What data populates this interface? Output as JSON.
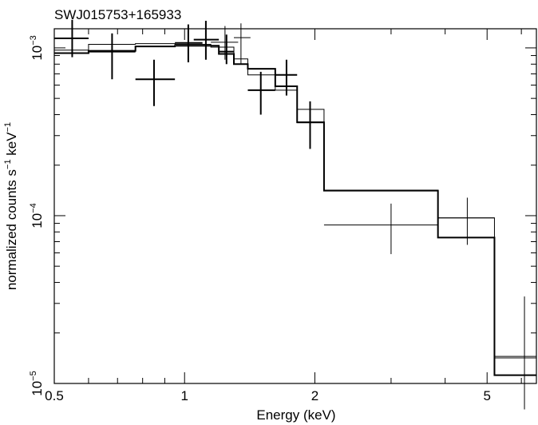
{
  "chart_data": {
    "type": "scatter",
    "title": "SWJ015753+165933",
    "xlabel": "Energy (keV)",
    "ylabel_parts": [
      "normalized counts s",
      "−1",
      " keV",
      "−1"
    ],
    "xscale": "log",
    "yscale": "log",
    "xlim": [
      0.5,
      6.5
    ],
    "ylim": [
      1e-05,
      0.0013
    ],
    "x_tick_labels": [
      {
        "value": 0.5,
        "label": "0.5"
      },
      {
        "value": 1,
        "label": "1"
      },
      {
        "value": 2,
        "label": "2"
      },
      {
        "value": 5,
        "label": "5"
      }
    ],
    "y_tick_labels": [
      {
        "value": 0.001,
        "base": "10",
        "exp": "−3"
      },
      {
        "value": 0.0001,
        "base": "10",
        "exp": "−4"
      },
      {
        "value": 1e-05,
        "base": "10",
        "exp": "−5"
      }
    ],
    "series": [
      {
        "kind": "data-points-thick",
        "points": [
          {
            "x": 0.55,
            "y": 0.00114,
            "xlo": 0.5,
            "xhi": 0.6,
            "ylo": 0.00088,
            "yhi": 0.00147
          },
          {
            "x": 0.68,
            "y": 0.00095,
            "xlo": 0.6,
            "xhi": 0.77,
            "ylo": 0.00065,
            "yhi": 0.00122
          },
          {
            "x": 0.85,
            "y": 0.00065,
            "xlo": 0.77,
            "xhi": 0.95,
            "ylo": 0.00045,
            "yhi": 0.00085
          },
          {
            "x": 1.02,
            "y": 0.00107,
            "xlo": 0.95,
            "xhi": 1.1,
            "ylo": 0.00082,
            "yhi": 0.00138
          },
          {
            "x": 1.12,
            "y": 0.00112,
            "xlo": 1.05,
            "xhi": 1.2,
            "ylo": 0.00085,
            "yhi": 0.00145
          },
          {
            "x": 1.25,
            "y": 0.00095,
            "xlo": 1.2,
            "xhi": 1.3,
            "ylo": 0.0008,
            "yhi": 0.0012
          },
          {
            "x": 1.5,
            "y": 0.00056,
            "xlo": 1.4,
            "xhi": 1.62,
            "ylo": 0.0004,
            "yhi": 0.00072
          },
          {
            "x": 1.72,
            "y": 0.00069,
            "xlo": 1.62,
            "xhi": 1.82,
            "ylo": 0.00052,
            "yhi": 0.00085
          },
          {
            "x": 1.95,
            "y": 0.00036,
            "xlo": 1.82,
            "xhi": 2.1,
            "ylo": 0.00025,
            "yhi": 0.00048
          }
        ]
      },
      {
        "kind": "data-points-thin",
        "points": [
          {
            "x": 1.24,
            "y": 0.00108,
            "xlo": 1.15,
            "xhi": 1.33,
            "ylo": 0.00085,
            "yhi": 0.00135
          },
          {
            "x": 1.35,
            "y": 0.00115,
            "xlo": 1.3,
            "xhi": 1.42,
            "ylo": 0.0008,
            "yhi": 0.0014
          },
          {
            "x": 3.0,
            "y": 8.8e-05,
            "xlo": 2.1,
            "xhi": 3.85,
            "ylo": 5.9e-05,
            "yhi": 0.000118
          },
          {
            "x": 4.5,
            "y": 9.7e-05,
            "xlo": 3.85,
            "xhi": 5.2,
            "ylo": 6.7e-05,
            "yhi": 0.000128
          },
          {
            "x": 6.1,
            "y": 1.45e-05,
            "xlo": 5.2,
            "xhi": 6.5,
            "ylo": 7e-06,
            "yhi": 3.3e-05
          }
        ]
      },
      {
        "kind": "model-thick",
        "steps": [
          {
            "x0": 0.5,
            "x1": 0.6,
            "y": 0.00093
          },
          {
            "x0": 0.6,
            "x1": 0.77,
            "y": 0.00096
          },
          {
            "x0": 0.77,
            "x1": 0.95,
            "y": 0.00102
          },
          {
            "x0": 0.95,
            "x1": 1.2,
            "y": 0.00103
          },
          {
            "x0": 1.2,
            "x1": 1.3,
            "y": 0.00092
          },
          {
            "x0": 1.3,
            "x1": 1.4,
            "y": 0.0008
          },
          {
            "x0": 1.4,
            "x1": 1.62,
            "y": 0.00075
          },
          {
            "x0": 1.62,
            "x1": 1.82,
            "y": 0.00059
          },
          {
            "x0": 1.82,
            "x1": 2.1,
            "y": 0.00036
          },
          {
            "x0": 2.1,
            "x1": 3.85,
            "y": 0.000141
          },
          {
            "x0": 3.85,
            "x1": 5.2,
            "y": 7.4e-05
          },
          {
            "x0": 5.2,
            "x1": 6.5,
            "y": 1.12e-05
          }
        ]
      },
      {
        "kind": "model-thin",
        "steps": [
          {
            "x0": 0.5,
            "x1": 0.6,
            "y": 0.00097
          },
          {
            "x0": 0.6,
            "x1": 0.77,
            "y": 0.00105
          },
          {
            "x0": 0.77,
            "x1": 0.95,
            "y": 0.00106
          },
          {
            "x0": 0.95,
            "x1": 1.15,
            "y": 0.00105
          },
          {
            "x0": 1.15,
            "x1": 1.3,
            "y": 0.00101
          },
          {
            "x0": 1.3,
            "x1": 1.4,
            "y": 0.00086
          },
          {
            "x0": 1.4,
            "x1": 1.62,
            "y": 0.00069
          },
          {
            "x0": 1.62,
            "x1": 1.82,
            "y": 0.00056
          },
          {
            "x0": 1.82,
            "x1": 2.1,
            "y": 0.00043
          },
          {
            "x0": 2.1,
            "x1": 3.85,
            "y": 0.000142
          },
          {
            "x0": 3.85,
            "x1": 5.2,
            "y": 9.7e-05
          },
          {
            "x0": 5.2,
            "x1": 6.5,
            "y": 1.42e-05
          }
        ]
      }
    ],
    "grid": false,
    "legend": "none"
  }
}
